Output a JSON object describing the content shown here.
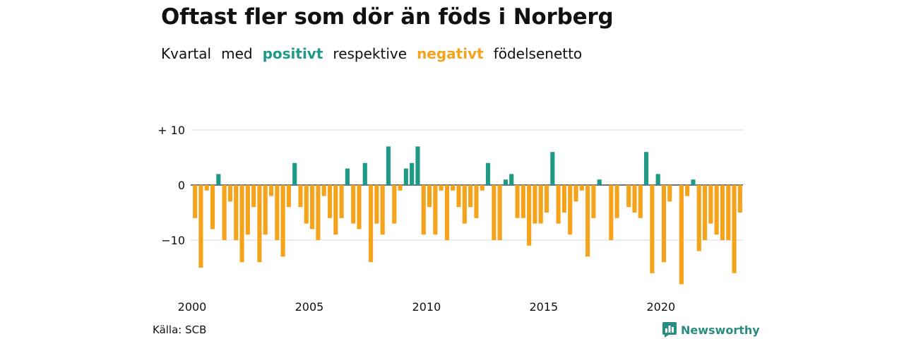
{
  "title": "Oftast fler som dör än föds i Norberg",
  "subtitle": {
    "w1": "Kvartal",
    "w2": "med",
    "positive": "positivt",
    "w3": "respektive",
    "negative": "negativt",
    "w4": "födelsenetto"
  },
  "source": "Källa: SCB",
  "brand": "Newsworthy",
  "colors": {
    "positive": "#1f9a87",
    "negative": "#f5a31a",
    "grid": "#d9d9d9"
  },
  "chart_data": {
    "type": "bar",
    "ylim": [
      -18,
      10
    ],
    "yticks": [
      {
        "value": 10,
        "label": "+ 10"
      },
      {
        "value": 0,
        "label": "0"
      },
      {
        "value": -10,
        "label": "−10"
      }
    ],
    "xticks": [
      "2000",
      "2005",
      "2010",
      "2015",
      "2020"
    ],
    "start_year": 2000,
    "values": [
      -6,
      -15,
      -1,
      -8,
      2,
      -10,
      -3,
      -10,
      -14,
      -9,
      -4,
      -14,
      -9,
      -2,
      -10,
      -13,
      -4,
      4,
      -4,
      -7,
      -8,
      -10,
      -2,
      -6,
      -9,
      -6,
      3,
      -7,
      -8,
      4,
      -14,
      -7,
      -9,
      7,
      -7,
      -1,
      3,
      4,
      7,
      -9,
      -4,
      -9,
      -1,
      -10,
      -1,
      -4,
      -7,
      -4,
      -6,
      -1,
      4,
      -10,
      -10,
      1,
      2,
      -6,
      -6,
      -11,
      -7,
      -7,
      -5,
      6,
      -7,
      -5,
      -9,
      -3,
      -1,
      -13,
      -6,
      1,
      0,
      -10,
      -6,
      0,
      -4,
      -5,
      -6,
      6,
      -16,
      2,
      -14,
      -3,
      0,
      -18,
      -2,
      1,
      -12,
      -10,
      -7,
      -9,
      -10,
      -10,
      -16,
      -5
    ]
  }
}
